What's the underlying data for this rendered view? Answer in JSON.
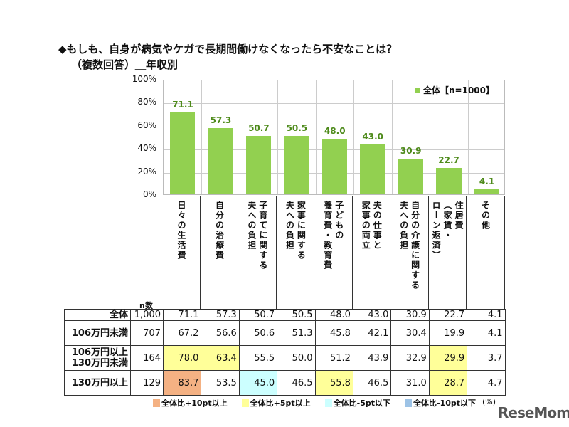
{
  "chart_data": {
    "type": "bar",
    "title": "◆もしも、自身が病気やケガで長期間働けなくなったら不安なことは？",
    "subtitle": "（複数回答）＿年収別",
    "categories": [
      "日々の生活費",
      "自分の治療費",
      "子育てに関する\n夫への負担",
      "家事に関する\n夫への負担",
      "子どもの\n養育費・教育費",
      "夫の仕事と\n家事の両立",
      "自分の介護に関する\n夫への負担",
      "住居費\n（家賃・\nローン返済）",
      "その他"
    ],
    "series": [
      {
        "name": "全体【n=1000】",
        "values": [
          71.1,
          57.3,
          50.7,
          50.5,
          48.0,
          43.0,
          30.9,
          22.7,
          4.1
        ]
      }
    ],
    "ylim": [
      0,
      100
    ],
    "yticks": [
      "0%",
      "20%",
      "40%",
      "60%",
      "80%",
      "100%"
    ],
    "grid": true,
    "legend": "top-right",
    "bar_color": "#92d050",
    "table": {
      "n_header": "n数",
      "rows": [
        {
          "label": "全体",
          "n": "1,000",
          "values": [
            "71.1",
            "57.3",
            "50.7",
            "50.5",
            "48.0",
            "43.0",
            "30.9",
            "22.7",
            "4.1"
          ],
          "highlight": [
            "",
            "",
            "",
            "",
            "",
            "",
            "",
            "",
            ""
          ]
        },
        {
          "label": "106万円未満",
          "n": "707",
          "values": [
            "67.2",
            "56.6",
            "50.6",
            "51.3",
            "45.8",
            "42.1",
            "30.4",
            "19.9",
            "4.1"
          ],
          "highlight": [
            "",
            "",
            "",
            "",
            "",
            "",
            "",
            "",
            ""
          ]
        },
        {
          "label": "106万円以上\n130万円未満",
          "n": "164",
          "values": [
            "78.0",
            "63.4",
            "55.5",
            "50.0",
            "51.2",
            "43.9",
            "32.9",
            "29.9",
            "3.7"
          ],
          "highlight": [
            "p5",
            "p5",
            "",
            "",
            "",
            "",
            "",
            "p5",
            ""
          ]
        },
        {
          "label": "130万円以上",
          "n": "129",
          "values": [
            "83.7",
            "53.5",
            "45.0",
            "46.5",
            "55.8",
            "46.5",
            "31.0",
            "28.7",
            "4.7"
          ],
          "highlight": [
            "p10",
            "",
            "m5",
            "",
            "p5",
            "",
            "",
            "p5",
            ""
          ]
        }
      ],
      "key": [
        {
          "id": "p10",
          "label": "全体比+10pt以上",
          "color": "#f4b183"
        },
        {
          "id": "p5",
          "label": "全体比+5pt以上",
          "color": "#ffff99"
        },
        {
          "id": "m5",
          "label": "全体比-5pt以下",
          "color": "#ccffff"
        },
        {
          "id": "m10",
          "label": "全体比-10pt以下",
          "color": "#9dc3e6"
        }
      ],
      "unit": "(%)"
    }
  },
  "logo": "ReseMom"
}
